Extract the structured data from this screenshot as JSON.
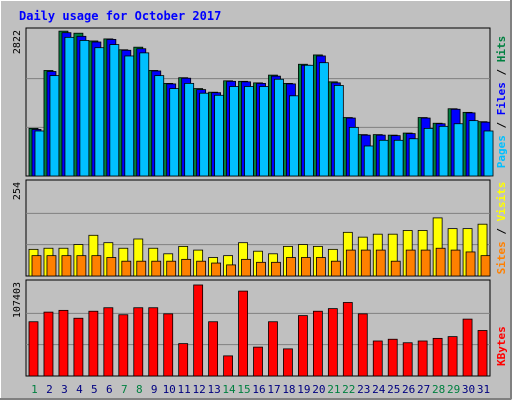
{
  "chart_data": {
    "type": "bar",
    "title": "Daily usage for October 2017",
    "days": [
      "1",
      "2",
      "3",
      "4",
      "5",
      "6",
      "7",
      "8",
      "9",
      "10",
      "11",
      "12",
      "13",
      "14",
      "15",
      "16",
      "17",
      "18",
      "19",
      "20",
      "21",
      "22",
      "23",
      "24",
      "25",
      "26",
      "27",
      "28",
      "29",
      "30",
      "31"
    ],
    "weekend_days": [
      "1",
      "7",
      "8",
      "14",
      "15",
      "21",
      "22",
      "28",
      "29"
    ],
    "panels": [
      {
        "id": "top",
        "scale_label": "2822",
        "ylim": [
          0,
          2822
        ],
        "series": [
          {
            "name": "Hits",
            "color": "#008040",
            "values": [
              920,
              2040,
              2800,
              2760,
              2610,
              2650,
              2440,
              2490,
              2040,
              1790,
              1900,
              1690,
              1620,
              1840,
              1830,
              1800,
              1950,
              1790,
              2160,
              2340,
              1820,
              1130,
              800,
              800,
              790,
              830,
              1130,
              1020,
              1300,
              1230,
              1050
            ]
          },
          {
            "name": "Files",
            "color": "#0000ff",
            "values": [
              900,
              2020,
              2770,
              2700,
              2590,
              2640,
              2430,
              2460,
              2030,
              1780,
              1890,
              1670,
              1610,
              1830,
              1820,
              1790,
              1930,
              1780,
              2140,
              2320,
              1800,
              1120,
              790,
              790,
              780,
              820,
              1120,
              1010,
              1290,
              1220,
              1040
            ]
          },
          {
            "name": "Pages",
            "color": "#00c0ff",
            "values": [
              870,
              1940,
              2680,
              2620,
              2480,
              2540,
              2320,
              2380,
              1940,
              1690,
              1790,
              1600,
              1560,
              1730,
              1730,
              1730,
              1870,
              1550,
              2140,
              2190,
              1750,
              940,
              580,
              690,
              690,
              720,
              920,
              960,
              1010,
              1070,
              870
            ]
          }
        ]
      },
      {
        "id": "middle",
        "scale_label": "254",
        "ylim": [
          0,
          254
        ],
        "series": [
          {
            "name": "Visits",
            "color": "#ffff00",
            "values": [
              72,
              75,
              75,
              85,
              110,
              90,
              75,
              100,
              75,
              60,
              80,
              70,
              50,
              55,
              90,
              67,
              60,
              80,
              85,
              80,
              72,
              118,
              105,
              113,
              113,
              123,
              123,
              157,
              128,
              128,
              140
            ]
          },
          {
            "name": "Sites",
            "color": "#ff8000",
            "values": [
              55,
              55,
              55,
              55,
              55,
              50,
              40,
              40,
              40,
              40,
              45,
              40,
              35,
              30,
              45,
              37,
              37,
              50,
              50,
              50,
              40,
              70,
              70,
              70,
              40,
              70,
              70,
              75,
              70,
              65,
              55
            ]
          }
        ]
      },
      {
        "id": "bottom",
        "scale_label": "107403",
        "ylim": [
          0,
          107403
        ],
        "series": [
          {
            "name": "KBytes",
            "color": "#ff0000",
            "values": [
              62000,
              73000,
              75000,
              66000,
              74000,
              78000,
              70000,
              78000,
              78000,
              71000,
              37000,
              104000,
              62000,
              23000,
              97000,
              33000,
              62000,
              31000,
              69000,
              74000,
              77000,
              84000,
              71000,
              40000,
              42000,
              38000,
              40000,
              43000,
              45000,
              65000,
              52000
            ]
          }
        ]
      }
    ],
    "legend_top": [
      {
        "text": "Pages",
        "color": "#00c0ff"
      },
      {
        "text": " / ",
        "color": "#000000"
      },
      {
        "text": "Files",
        "color": "#0000ff"
      },
      {
        "text": " / ",
        "color": "#000000"
      },
      {
        "text": "Hits",
        "color": "#008040"
      }
    ],
    "legend_middle": [
      {
        "text": "Sites",
        "color": "#ff8000"
      },
      {
        "text": " / ",
        "color": "#000000"
      },
      {
        "text": "Visits",
        "color": "#ffff00"
      }
    ],
    "legend_bottom": [
      {
        "text": "KBytes",
        "color": "#ff0000"
      }
    ]
  },
  "colors": {
    "background": "#c0c0c0",
    "plot_area": "#c0c0c0",
    "title": "#0000ff",
    "weekday_label": "#000080",
    "weekend_label": "#008040"
  }
}
